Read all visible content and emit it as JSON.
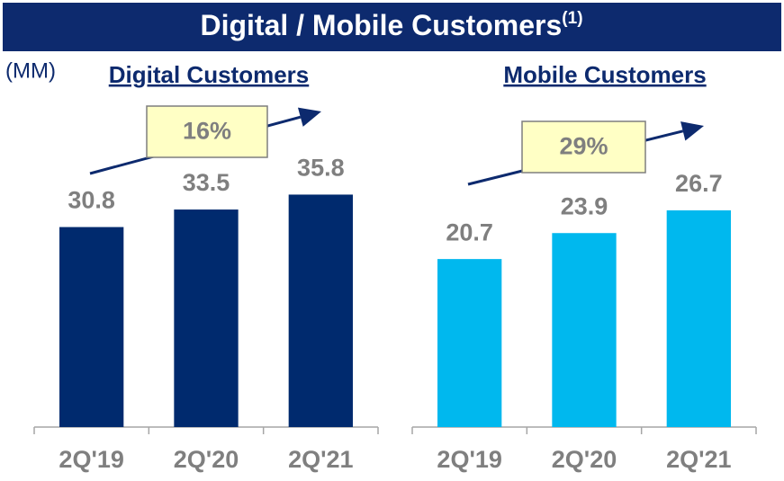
{
  "page": {
    "title": "Digital / Mobile Customers",
    "title_note": "(1)",
    "unit": "(MM)"
  },
  "chart_data": [
    {
      "type": "bar",
      "title": "Digital Customers",
      "categories": [
        "2Q'19",
        "2Q'20",
        "2Q'21"
      ],
      "values": [
        30.8,
        33.5,
        35.8
      ],
      "color": "#002a6e",
      "ylim": [
        0,
        45
      ],
      "annotation": "16%"
    },
    {
      "type": "bar",
      "title": "Mobile Customers",
      "categories": [
        "2Q'19",
        "2Q'20",
        "2Q'21"
      ],
      "values": [
        20.7,
        23.9,
        26.7
      ],
      "color": "#00b8ee",
      "ylim": [
        0,
        36
      ],
      "annotation": "29%"
    }
  ]
}
